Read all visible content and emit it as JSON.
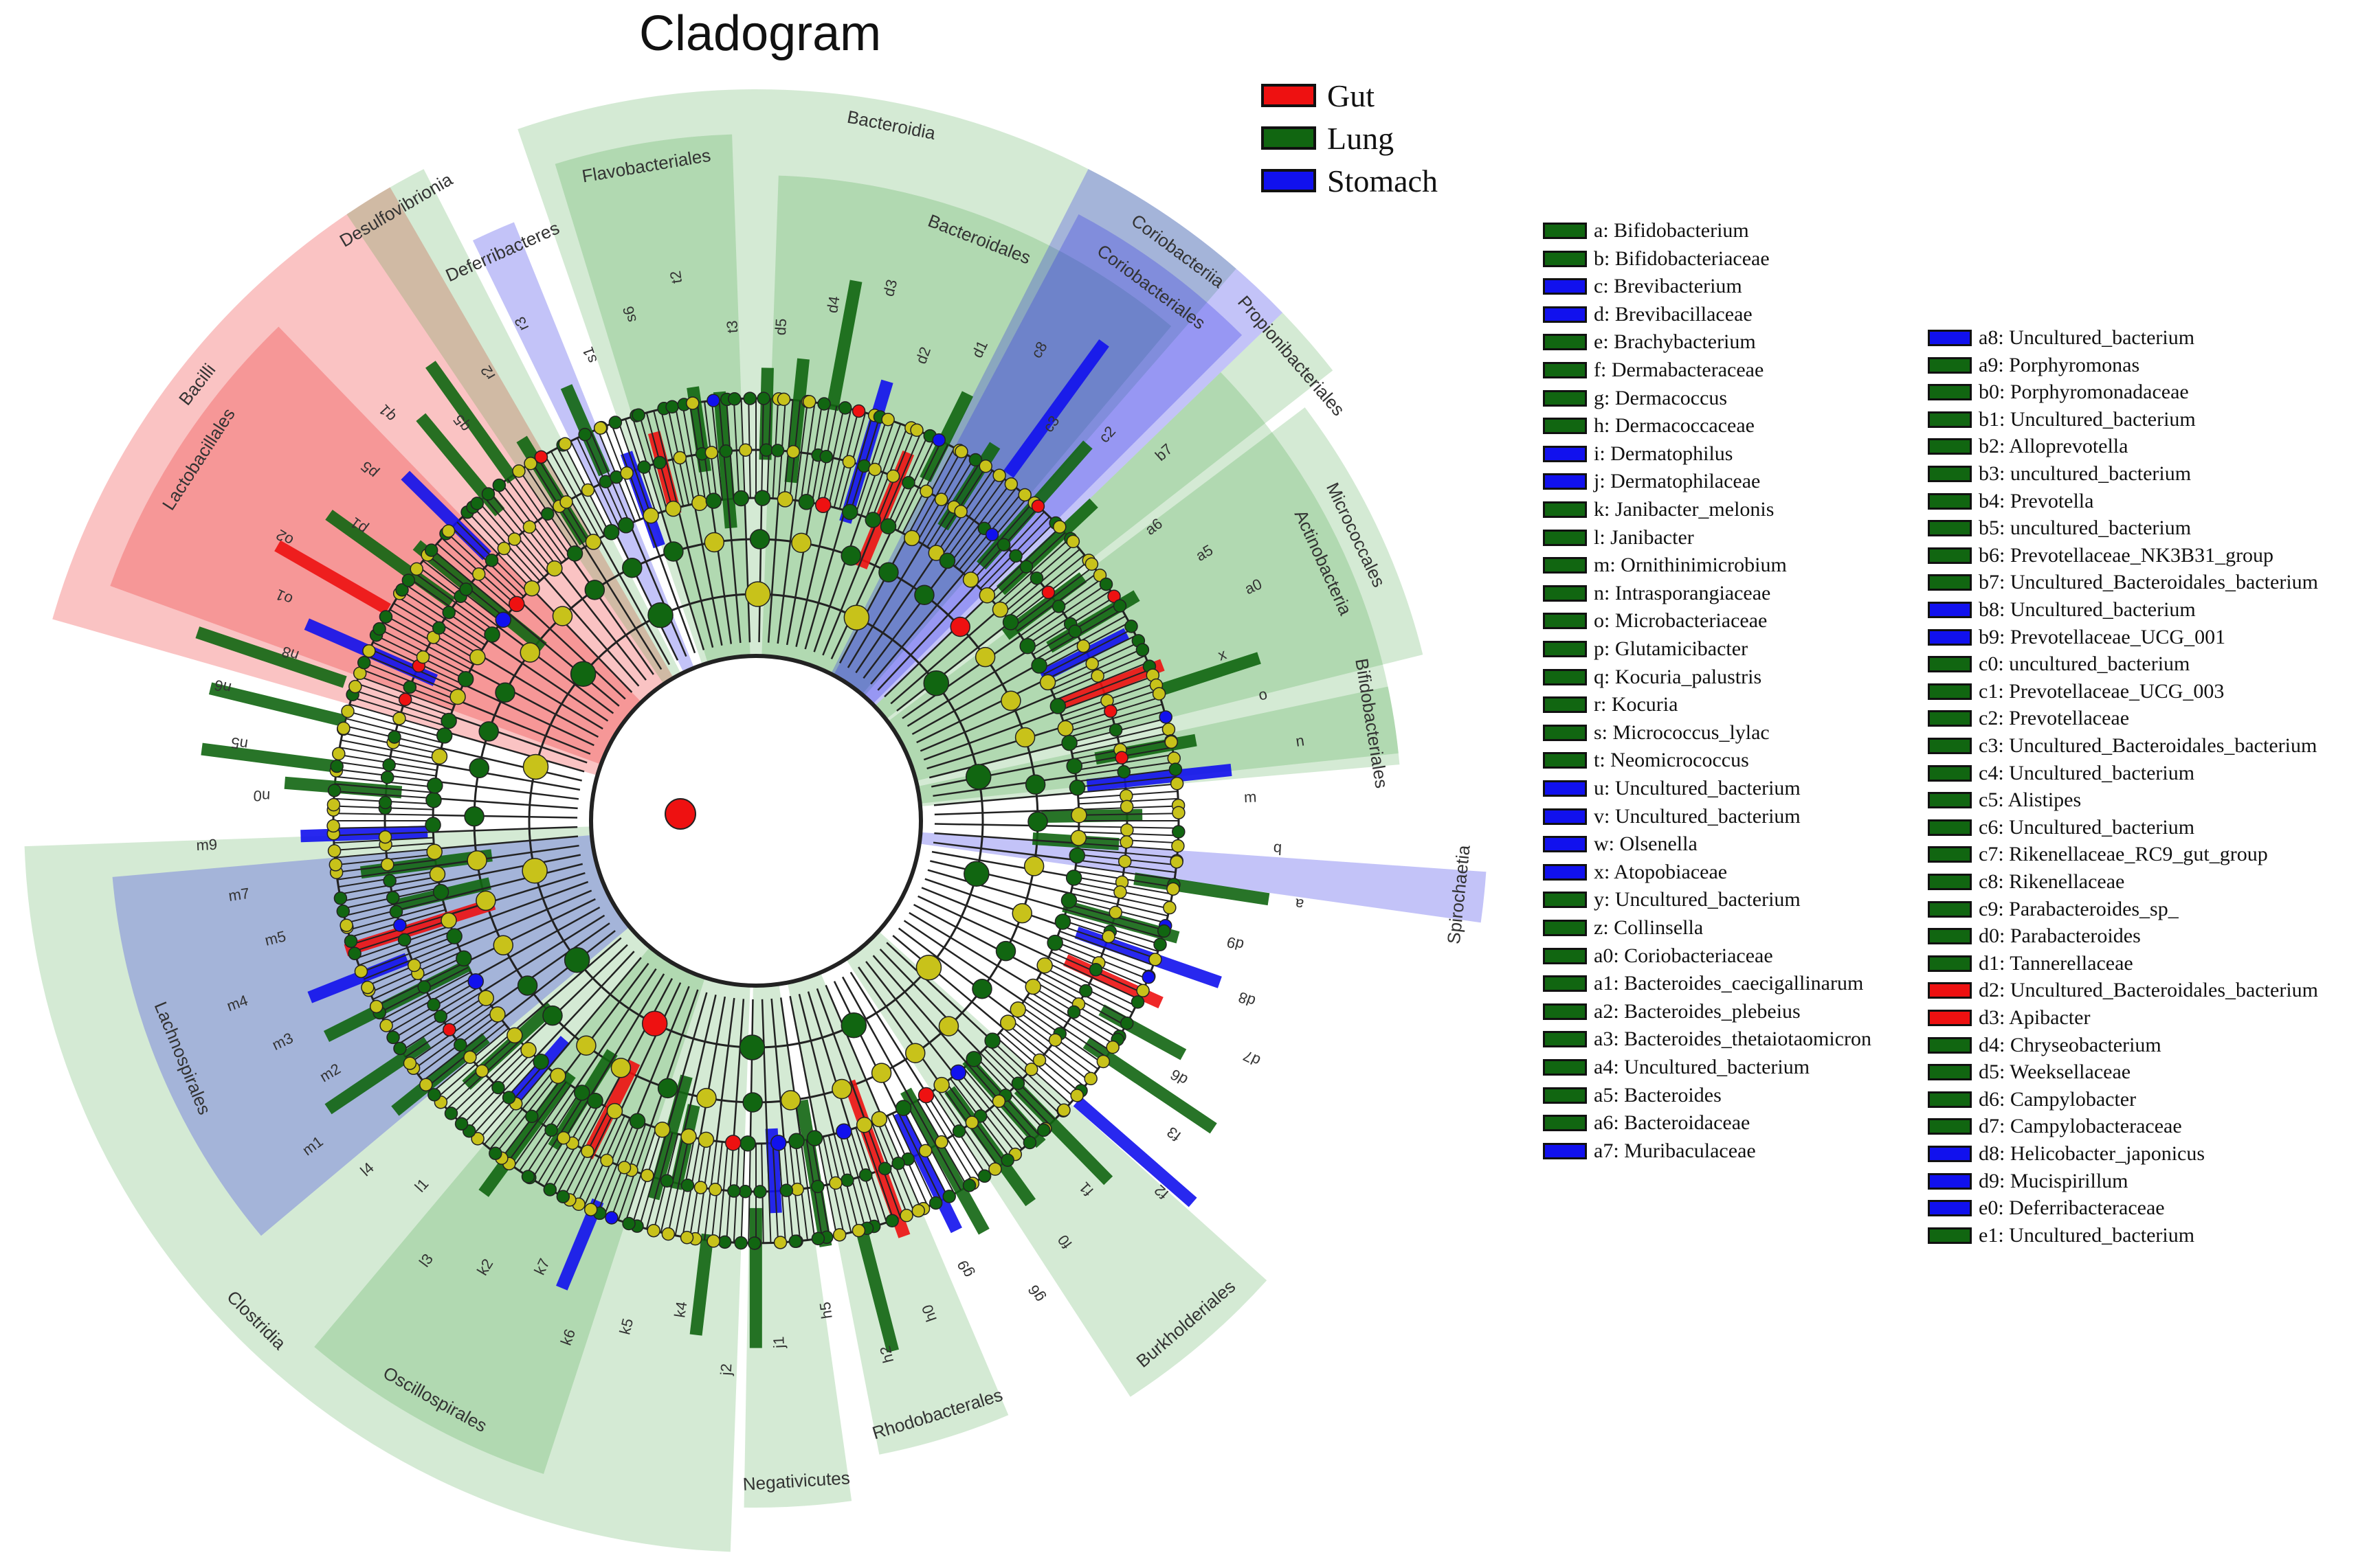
{
  "title": "Cladogram",
  "colors": {
    "gut": "#ee1111",
    "lung": "#116611",
    "stomach": "#1111ee",
    "node": "#c8c21a"
  },
  "groups": [
    {
      "label": "Gut",
      "color": "#ee1111"
    },
    {
      "label": "Lung",
      "color": "#116611"
    },
    {
      "label": "Stomach",
      "color": "#1111ee"
    }
  ],
  "sectors": [
    {
      "label": "Bacteroidia",
      "group": "lung",
      "start": 341,
      "end": 41
    },
    {
      "label": "Flavobacteriales",
      "group": "lung",
      "start": 343,
      "end": 358
    },
    {
      "label": "Bacteroidales",
      "group": "lung",
      "start": 2,
      "end": 40
    },
    {
      "label": "Coriobacteriia",
      "group": "stomach",
      "start": 27,
      "end": 46
    },
    {
      "label": "Coriobacteriales",
      "group": "stomach",
      "start": 28,
      "end": 45
    },
    {
      "label": "Actinobacteria",
      "group": "lung",
      "start": 46,
      "end": 85
    },
    {
      "label": "Propionibacteriales",
      "group": "lung",
      "start": 46,
      "end": 52
    },
    {
      "label": "Micrococcales",
      "group": "lung",
      "start": 53,
      "end": 76
    },
    {
      "label": "Bifidobacteriales",
      "group": "lung",
      "start": 78,
      "end": 84
    },
    {
      "label": "Spirochaetia",
      "group": "stomach",
      "start": 94,
      "end": 98
    },
    {
      "label": "Burkholderiales",
      "group": "lung",
      "start": 132,
      "end": 147
    },
    {
      "label": "Rhodobacterales",
      "group": "lung",
      "start": 157,
      "end": 169
    },
    {
      "label": "Clostridia",
      "group": "lung",
      "start": 182,
      "end": 268
    },
    {
      "label": "Oscillospirales",
      "group": "lung",
      "start": 198,
      "end": 220
    },
    {
      "label": "Lachnospirales",
      "group": "stomach",
      "start": 230,
      "end": 265
    },
    {
      "label": "Bacilli",
      "group": "gut",
      "start": 286,
      "end": 330
    },
    {
      "label": "Lactobacillales",
      "group": "gut",
      "start": 290,
      "end": 316
    },
    {
      "label": "Deferribacteres",
      "group": "stomach",
      "start": 334,
      "end": 338
    },
    {
      "label": "Desulfovibrionia",
      "group": "lung",
      "start": 326,
      "end": 333
    },
    {
      "label": "Negativicutes",
      "group": "lung",
      "start": 172,
      "end": 181
    }
  ],
  "clade_letters": [
    "d5",
    "d4",
    "d3",
    "d2",
    "d1",
    "c8",
    "c3",
    "c2",
    "b7",
    "a6",
    "a5",
    "a0",
    "x",
    "o",
    "n",
    "m",
    "b",
    "a",
    "d9",
    "d8",
    "d7",
    "d6",
    "f3",
    "f2",
    "f1",
    "f0",
    "g6",
    "g9",
    "h0",
    "h2",
    "h5",
    "j1",
    "j2",
    "k4",
    "k5",
    "k6",
    "k7",
    "k2",
    "l3",
    "l1",
    "l4",
    "m1",
    "m2",
    "m3",
    "m4",
    "m5",
    "m7",
    "m9",
    "n0",
    "n5",
    "n6",
    "n8",
    "o1",
    "o2",
    "p1",
    "p5",
    "q1",
    "q5",
    "r2",
    "r3",
    "s1",
    "s6",
    "t2",
    "t3"
  ],
  "legend_taxa_left": [
    {
      "label": "a: Bifidobacterium",
      "color": "#116611"
    },
    {
      "label": "b: Bifidobacteriaceae",
      "color": "#116611"
    },
    {
      "label": "c: Brevibacterium",
      "color": "#1111ee"
    },
    {
      "label": "d: Brevibacillaceae",
      "color": "#1111ee"
    },
    {
      "label": "e: Brachybacterium",
      "color": "#116611"
    },
    {
      "label": "f: Dermabacteraceae",
      "color": "#116611"
    },
    {
      "label": "g: Dermacoccus",
      "color": "#116611"
    },
    {
      "label": "h: Dermacoccaceae",
      "color": "#116611"
    },
    {
      "label": "i: Dermatophilus",
      "color": "#1111ee"
    },
    {
      "label": "j: Dermatophilaceae",
      "color": "#1111ee"
    },
    {
      "label": "k: Janibacter_melonis",
      "color": "#116611"
    },
    {
      "label": "l: Janibacter",
      "color": "#116611"
    },
    {
      "label": "m: Ornithinimicrobium",
      "color": "#116611"
    },
    {
      "label": "n: Intrasporangiaceae",
      "color": "#116611"
    },
    {
      "label": "o: Microbacteriaceae",
      "color": "#116611"
    },
    {
      "label": "p: Glutamicibacter",
      "color": "#116611"
    },
    {
      "label": "q: Kocuria_palustris",
      "color": "#116611"
    },
    {
      "label": "r: Kocuria",
      "color": "#116611"
    },
    {
      "label": "s: Micrococcus_lylac",
      "color": "#116611"
    },
    {
      "label": "t: Neomicrococcus",
      "color": "#116611"
    },
    {
      "label": "u: Uncultured_bacterium",
      "color": "#1111ee"
    },
    {
      "label": "v: Uncultured_bacterium",
      "color": "#1111ee"
    },
    {
      "label": "w: Olsenella",
      "color": "#1111ee"
    },
    {
      "label": "x: Atopobiaceae",
      "color": "#1111ee"
    },
    {
      "label": "y: Uncultured_bacterium",
      "color": "#116611"
    },
    {
      "label": "z: Collinsella",
      "color": "#116611"
    },
    {
      "label": "a0: Coriobacteriaceae",
      "color": "#116611"
    },
    {
      "label": "a1: Bacteroides_caecigallinarum",
      "color": "#116611"
    },
    {
      "label": "a2: Bacteroides_plebeius",
      "color": "#116611"
    },
    {
      "label": "a3: Bacteroides_thetaiotaomicron",
      "color": "#116611"
    },
    {
      "label": "a4: Uncultured_bacterium",
      "color": "#116611"
    },
    {
      "label": "a5: Bacteroides",
      "color": "#116611"
    },
    {
      "label": "a6: Bacteroidaceae",
      "color": "#116611"
    },
    {
      "label": "a7: Muribaculaceae",
      "color": "#1111ee"
    }
  ],
  "legend_taxa_right": [
    {
      "label": "a8: Uncultured_bacterium",
      "color": "#1111ee"
    },
    {
      "label": "a9: Porphyromonas",
      "color": "#116611"
    },
    {
      "label": "b0: Porphyromonadaceae",
      "color": "#116611"
    },
    {
      "label": "b1: Uncultured_bacterium",
      "color": "#116611"
    },
    {
      "label": "b2: Alloprevotella",
      "color": "#116611"
    },
    {
      "label": "b3: uncultured_bacterium",
      "color": "#116611"
    },
    {
      "label": "b4: Prevotella",
      "color": "#116611"
    },
    {
      "label": "b5: uncultured_bacterium",
      "color": "#116611"
    },
    {
      "label": "b6: Prevotellaceae_NK3B31_group",
      "color": "#116611"
    },
    {
      "label": "b7: Uncultured_Bacteroidales_bacterium",
      "color": "#116611"
    },
    {
      "label": "b8: Uncultured_bacterium",
      "color": "#1111ee"
    },
    {
      "label": "b9: Prevotellaceae_UCG_001",
      "color": "#1111ee"
    },
    {
      "label": "c0: uncultured_bacterium",
      "color": "#116611"
    },
    {
      "label": "c1: Prevotellaceae_UCG_003",
      "color": "#116611"
    },
    {
      "label": "c2: Prevotellaceae",
      "color": "#116611"
    },
    {
      "label": "c3: Uncultured_Bacteroidales_bacterium",
      "color": "#116611"
    },
    {
      "label": "c4: Uncultured_bacterium",
      "color": "#116611"
    },
    {
      "label": "c5: Alistipes",
      "color": "#116611"
    },
    {
      "label": "c6: Uncultured_bacterium",
      "color": "#116611"
    },
    {
      "label": "c7: Rikenellaceae_RC9_gut_group",
      "color": "#116611"
    },
    {
      "label": "c8: Rikenellaceae",
      "color": "#116611"
    },
    {
      "label": "c9: Parabacteroides_sp_",
      "color": "#116611"
    },
    {
      "label": "d0: Parabacteroides",
      "color": "#116611"
    },
    {
      "label": "d1: Tannerellaceae",
      "color": "#116611"
    },
    {
      "label": "d2: Uncultured_Bacteroidales_bacterium",
      "color": "#ee1111"
    },
    {
      "label": "d3: Apibacter",
      "color": "#ee1111"
    },
    {
      "label": "d4: Chryseobacterium",
      "color": "#116611"
    },
    {
      "label": "d5: Weeksellaceae",
      "color": "#116611"
    },
    {
      "label": "d6: Campylobacter",
      "color": "#116611"
    },
    {
      "label": "d7: Campylobacteraceae",
      "color": "#116611"
    },
    {
      "label": "d8: Helicobacter_japonicus",
      "color": "#1111ee"
    },
    {
      "label": "d9: Mucispirillum",
      "color": "#1111ee"
    },
    {
      "label": "e0: Deferribacteraceae",
      "color": "#1111ee"
    },
    {
      "label": "e1: Uncultured_bacterium",
      "color": "#116611"
    }
  ]
}
